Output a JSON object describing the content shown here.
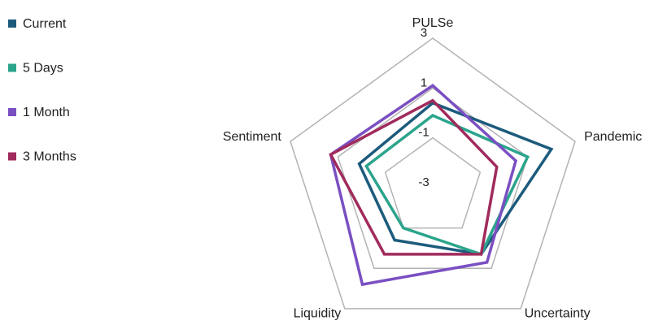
{
  "chart_data": {
    "type": "radar",
    "categories": [
      "PULSe",
      "Pandemic",
      "Uncertainty",
      "Liquidity",
      "Sentiment"
    ],
    "series": [
      {
        "name": "Current",
        "color": "#1c5b7c",
        "values": [
          0.4,
          2.0,
          0.3,
          -0.4,
          0.1
        ]
      },
      {
        "name": "5 Days",
        "color": "#2ba48c",
        "values": [
          -0.1,
          1.0,
          0.3,
          -1.0,
          -0.2
        ]
      },
      {
        "name": "1 Month",
        "color": "#7a4fc2",
        "values": [
          1.1,
          0.5,
          0.7,
          1.8,
          1.3
        ]
      },
      {
        "name": "3 Months",
        "color": "#a02b5c",
        "values": [
          0.5,
          -0.3,
          0.3,
          0.3,
          1.3
        ]
      }
    ],
    "ylim": [
      -3,
      3
    ],
    "yticks": [
      3,
      1,
      -1,
      -3
    ],
    "grid": true,
    "legend": "left"
  }
}
